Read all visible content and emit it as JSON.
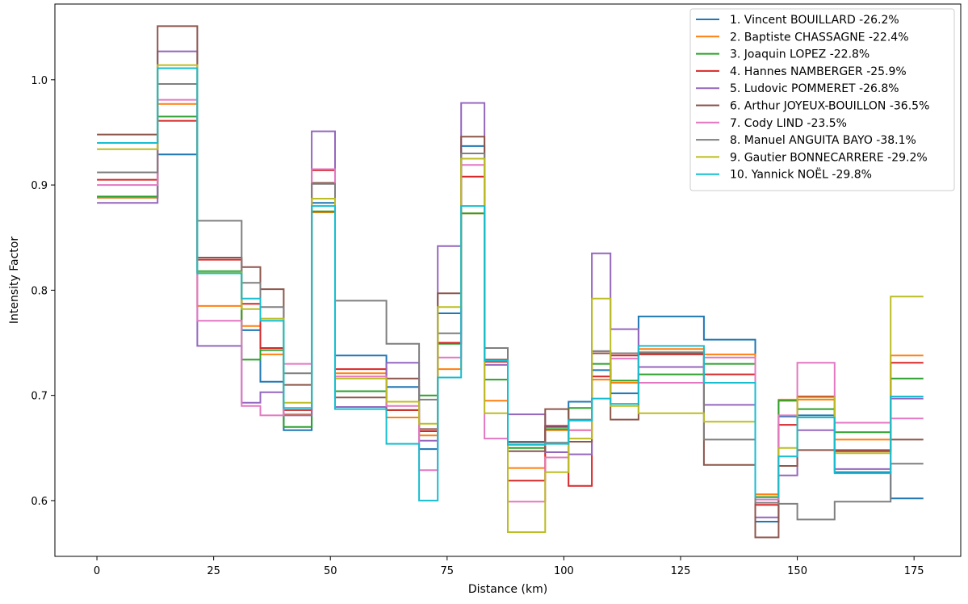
{
  "chart_data": {
    "type": "line",
    "step": true,
    "xlabel": "Distance (km)",
    "ylabel": "Intensity Factor",
    "xlim": [
      -9,
      185
    ],
    "ylim": [
      0.547,
      1.072
    ],
    "xticks": [
      0,
      25,
      50,
      75,
      100,
      125,
      150,
      175
    ],
    "yticks": [
      0.6,
      0.7,
      0.8,
      0.9,
      1.0
    ],
    "ytick_labels": [
      "0.6",
      "0.7",
      "0.8",
      "0.9",
      "1.0"
    ],
    "legend_position": "top-right",
    "breaks": [
      0,
      13,
      21.5,
      31,
      35,
      40,
      46,
      51,
      62,
      69,
      73,
      78,
      83,
      88,
      96,
      101,
      106,
      110,
      116,
      130,
      141,
      146,
      150,
      158,
      170,
      177
    ],
    "series": [
      {
        "name": "1. Vincent BOUILLARD -26.2%",
        "color": "#1f77b4",
        "values": [
          0.888,
          0.929,
          0.817,
          0.762,
          0.713,
          0.667,
          0.883,
          0.738,
          0.708,
          0.649,
          0.778,
          0.937,
          0.732,
          0.656,
          0.67,
          0.694,
          0.724,
          0.702,
          0.775,
          0.753,
          0.58,
          0.68,
          0.681,
          0.627,
          0.602
        ]
      },
      {
        "name": "2. Baptiste CHASSAGNE -22.4%",
        "color": "#ff7f0e",
        "values": [
          0.888,
          0.977,
          0.785,
          0.766,
          0.739,
          0.682,
          0.874,
          0.721,
          0.679,
          0.662,
          0.725,
          0.873,
          0.695,
          0.631,
          0.667,
          0.667,
          0.715,
          0.712,
          0.744,
          0.739,
          0.606,
          0.696,
          0.696,
          0.658,
          0.738
        ]
      },
      {
        "name": "3. Joaquin LOPEZ -22.8%",
        "color": "#2ca02c",
        "values": [
          0.889,
          0.965,
          0.818,
          0.734,
          0.743,
          0.67,
          0.875,
          0.704,
          0.686,
          0.7,
          0.749,
          0.873,
          0.715,
          0.65,
          0.668,
          0.688,
          0.73,
          0.714,
          0.72,
          0.73,
          0.603,
          0.695,
          0.687,
          0.665,
          0.716
        ]
      },
      {
        "name": "4. Hannes NAMBERGER -25.9%",
        "color": "#d62728",
        "values": [
          0.905,
          0.961,
          0.829,
          0.787,
          0.745,
          0.686,
          0.914,
          0.725,
          0.686,
          0.666,
          0.75,
          0.908,
          0.732,
          0.619,
          0.671,
          0.614,
          0.718,
          0.738,
          0.739,
          0.72,
          0.596,
          0.672,
          0.699,
          0.647,
          0.731
        ]
      },
      {
        "name": "5. Ludovic POMMERET -26.8%",
        "color": "#9467bd",
        "values": [
          0.883,
          1.027,
          0.747,
          0.693,
          0.703,
          0.681,
          0.951,
          0.689,
          0.731,
          0.657,
          0.842,
          0.978,
          0.729,
          0.682,
          0.646,
          0.644,
          0.835,
          0.763,
          0.727,
          0.691,
          0.584,
          0.624,
          0.667,
          0.63,
          0.697
        ]
      },
      {
        "name": "6. Arthur JOYEUX-BOUILLON -36.5%",
        "color": "#8c564b",
        "values": [
          0.948,
          1.051,
          0.831,
          0.822,
          0.801,
          0.71,
          0.902,
          0.698,
          0.716,
          0.668,
          0.797,
          0.946,
          0.734,
          0.647,
          0.687,
          0.656,
          0.74,
          0.677,
          0.74,
          0.634,
          0.565,
          0.633,
          0.648,
          0.648,
          0.658
        ]
      },
      {
        "name": "7. Cody LIND -23.5%",
        "color": "#e377c2",
        "values": [
          0.9,
          0.981,
          0.771,
          0.69,
          0.681,
          0.73,
          0.915,
          0.718,
          0.69,
          0.629,
          0.736,
          0.919,
          0.659,
          0.599,
          0.641,
          0.667,
          0.742,
          0.735,
          0.712,
          0.736,
          0.601,
          0.681,
          0.731,
          0.674,
          0.678
        ]
      },
      {
        "name": "8. Manuel ANGUITA BAYO -38.1%",
        "color": "#7f7f7f",
        "values": [
          0.912,
          0.996,
          0.866,
          0.807,
          0.784,
          0.721,
          0.901,
          0.79,
          0.749,
          0.696,
          0.759,
          0.93,
          0.745,
          0.655,
          0.655,
          0.677,
          0.742,
          0.74,
          0.741,
          0.658,
          0.598,
          0.597,
          0.582,
          0.599,
          0.635
        ]
      },
      {
        "name": "9. Gautier BONNECARRERE -29.2%",
        "color": "#bcbd22",
        "values": [
          0.934,
          1.014,
          0.817,
          0.782,
          0.773,
          0.693,
          0.887,
          0.716,
          0.694,
          0.673,
          0.784,
          0.925,
          0.683,
          0.57,
          0.627,
          0.659,
          0.792,
          0.69,
          0.683,
          0.675,
          0.604,
          0.65,
          0.698,
          0.645,
          0.794
        ]
      },
      {
        "name": "10. Yannick NOËL -29.8%",
        "color": "#17becf",
        "values": [
          0.94,
          1.011,
          0.816,
          0.792,
          0.771,
          0.688,
          0.88,
          0.687,
          0.654,
          0.6,
          0.717,
          0.88,
          0.733,
          0.653,
          0.654,
          0.676,
          0.697,
          0.692,
          0.747,
          0.712,
          0.603,
          0.642,
          0.679,
          0.626,
          0.699
        ]
      }
    ]
  }
}
